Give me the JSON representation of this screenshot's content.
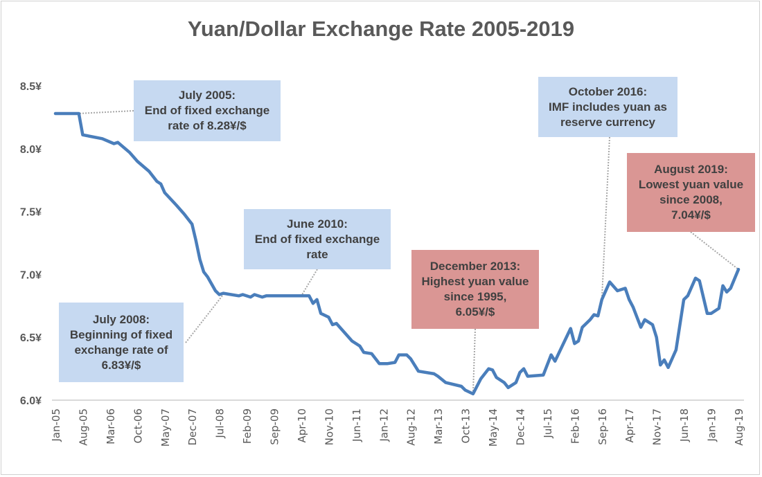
{
  "chart_data": {
    "type": "line",
    "title": "Yuan/Dollar Exchange Rate 2005-2019",
    "xlabel": "",
    "ylabel": "",
    "x_unit": "months since Jan 2005",
    "ylim": [
      6.0,
      8.5
    ],
    "yticks": [
      6.0,
      6.5,
      7.0,
      7.5,
      8.0,
      8.5
    ],
    "ytick_labels": [
      "6.0¥",
      "6.5¥",
      "7.0¥",
      "7.5¥",
      "8.0¥",
      "8.5¥"
    ],
    "xlim": [
      0,
      175
    ],
    "xtick_step_months": 7,
    "xtick_labels": [
      "Jan-05",
      "Aug-05",
      "Mar-06",
      "Oct-06",
      "May-07",
      "Dec-07",
      "Jul-08",
      "Feb-09",
      "Sep-09",
      "Apr-10",
      "Nov-10",
      "Jun-11",
      "Jan-12",
      "Aug-12",
      "Mar-13",
      "Oct-13",
      "May-14",
      "Dec-14",
      "Jul-15",
      "Feb-16",
      "Sep-16",
      "Apr-17",
      "Nov-17",
      "Jun-18",
      "Jan-19",
      "Aug-19"
    ],
    "grid": "bottom axis line only",
    "legend": "none",
    "line_color": "#4a7ebb",
    "series": [
      {
        "name": "Yuan per Dollar",
        "points": [
          [
            0,
            8.28
          ],
          [
            6,
            8.28
          ],
          [
            7,
            8.11
          ],
          [
            12,
            8.08
          ],
          [
            15,
            8.04
          ],
          [
            16,
            8.05
          ],
          [
            19,
            7.97
          ],
          [
            21,
            7.9
          ],
          [
            24,
            7.82
          ],
          [
            26,
            7.74
          ],
          [
            27,
            7.72
          ],
          [
            28,
            7.65
          ],
          [
            31,
            7.55
          ],
          [
            33,
            7.48
          ],
          [
            35,
            7.4
          ],
          [
            36,
            7.27
          ],
          [
            37,
            7.12
          ],
          [
            38,
            7.02
          ],
          [
            39,
            6.98
          ],
          [
            41,
            6.87
          ],
          [
            42,
            6.84
          ],
          [
            43,
            6.85
          ],
          [
            47,
            6.83
          ],
          [
            48,
            6.84
          ],
          [
            50,
            6.82
          ],
          [
            51,
            6.84
          ],
          [
            53,
            6.82
          ],
          [
            54,
            6.83
          ],
          [
            65,
            6.83
          ],
          [
            66,
            6.77
          ],
          [
            67,
            6.8
          ],
          [
            68,
            6.69
          ],
          [
            70,
            6.66
          ],
          [
            71,
            6.6
          ],
          [
            72,
            6.61
          ],
          [
            74,
            6.54
          ],
          [
            76,
            6.47
          ],
          [
            78,
            6.43
          ],
          [
            79,
            6.38
          ],
          [
            81,
            6.37
          ],
          [
            83,
            6.29
          ],
          [
            85,
            6.29
          ],
          [
            87,
            6.3
          ],
          [
            88,
            6.36
          ],
          [
            90,
            6.36
          ],
          [
            91,
            6.33
          ],
          [
            92,
            6.28
          ],
          [
            93,
            6.23
          ],
          [
            97,
            6.21
          ],
          [
            98,
            6.19
          ],
          [
            100,
            6.14
          ],
          [
            104,
            6.11
          ],
          [
            105,
            6.08
          ],
          [
            107,
            6.05
          ],
          [
            109,
            6.17
          ],
          [
            111,
            6.25
          ],
          [
            112,
            6.24
          ],
          [
            113,
            6.18
          ],
          [
            115,
            6.14
          ],
          [
            116,
            6.1
          ],
          [
            118,
            6.14
          ],
          [
            119,
            6.22
          ],
          [
            120,
            6.25
          ],
          [
            121,
            6.19
          ],
          [
            125,
            6.2
          ],
          [
            127,
            6.36
          ],
          [
            128,
            6.31
          ],
          [
            132,
            6.57
          ],
          [
            133,
            6.45
          ],
          [
            134,
            6.47
          ],
          [
            135,
            6.58
          ],
          [
            137,
            6.64
          ],
          [
            138,
            6.68
          ],
          [
            139,
            6.67
          ],
          [
            140,
            6.8
          ],
          [
            142,
            6.94
          ],
          [
            144,
            6.87
          ],
          [
            146,
            6.89
          ],
          [
            147,
            6.8
          ],
          [
            148,
            6.74
          ],
          [
            150,
            6.58
          ],
          [
            151,
            6.64
          ],
          [
            153,
            6.6
          ],
          [
            154,
            6.5
          ],
          [
            155,
            6.28
          ],
          [
            156,
            6.32
          ],
          [
            157,
            6.26
          ],
          [
            159,
            6.4
          ],
          [
            161,
            6.8
          ],
          [
            162,
            6.83
          ],
          [
            164,
            6.97
          ],
          [
            165,
            6.95
          ],
          [
            167,
            6.69
          ],
          [
            168,
            6.69
          ],
          [
            170,
            6.73
          ],
          [
            171,
            6.91
          ],
          [
            172,
            6.86
          ],
          [
            173,
            6.89
          ],
          [
            175,
            7.04
          ]
        ]
      }
    ],
    "annotations": [
      {
        "id": "jul-2005",
        "text": "July 2005:\nEnd of fixed exchange\nrate of 8.28¥/$",
        "style": "blue",
        "anchor": [
          6,
          8.28
        ]
      },
      {
        "id": "jun-2010",
        "text": "June 2010:\nEnd of fixed exchange\nrate",
        "style": "blue",
        "anchor": [
          63,
          6.83
        ]
      },
      {
        "id": "jul-2008",
        "text": "July 2008:\nBeginning of fixed\nexchange rate of\n6.83¥/$",
        "style": "blue",
        "anchor": [
          43,
          6.84
        ]
      },
      {
        "id": "dec-2013",
        "text": "December 2013:\nHighest yuan value\nsince 1995,\n6.05¥/$",
        "style": "red",
        "anchor": [
          107,
          6.05
        ]
      },
      {
        "id": "oct-2016",
        "text": "October 2016:\nIMF includes yuan as\nreserve currency",
        "style": "blue",
        "anchor": [
          140,
          6.8
        ]
      },
      {
        "id": "aug-2019",
        "text": "August 2019:\nLowest yuan value\nsince 2008,\n7.04¥/$",
        "style": "red",
        "anchor": [
          175,
          7.04
        ]
      }
    ],
    "colors": {
      "blue_box": "#c6d9f1",
      "red_box": "#da9694"
    }
  }
}
